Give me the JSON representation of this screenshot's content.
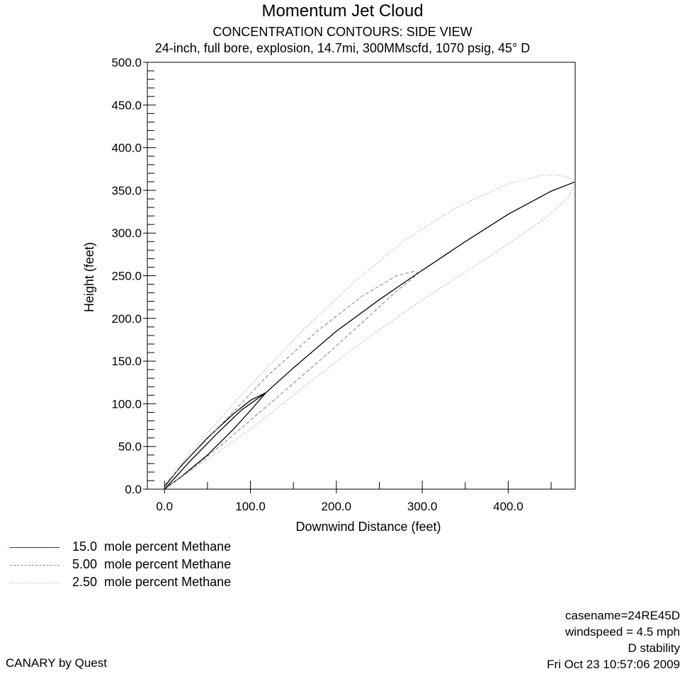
{
  "chart_data": {
    "type": "line",
    "title": "Momentum Jet Cloud",
    "subtitle": "CONCENTRATION CONTOURS: SIDE VIEW",
    "subtitle2": "24-inch, full bore, explosion, 14.7mi, 300MMscfd, 1070 psig, 45° D",
    "xlabel": "Downwind Distance (feet)",
    "ylabel": "Height (feet)",
    "xlim": [
      -20,
      478
    ],
    "ylim": [
      0,
      500
    ],
    "x_ticks": [
      0,
      100,
      200,
      300,
      400
    ],
    "x_tick_labels": [
      "0.0",
      "100.0",
      "200.0",
      "300.0",
      "400.0"
    ],
    "y_ticks": [
      0,
      50,
      100,
      150,
      200,
      250,
      300,
      350,
      400,
      450,
      500
    ],
    "y_tick_labels": [
      "0.0",
      "50.0",
      "100.0",
      "150.0",
      "200.0",
      "250.0",
      "300.0",
      "350.0",
      "400.0",
      "450.0",
      "500.0"
    ],
    "centerline": {
      "x": [
        0,
        30,
        60,
        90,
        118,
        150,
        200,
        250,
        295,
        350,
        400,
        450,
        478
      ],
      "y": [
        0,
        33,
        64,
        93,
        113,
        142,
        185,
        222,
        253,
        290,
        322,
        349,
        360
      ]
    },
    "series": [
      {
        "name": "15.0  mole percent Methane",
        "color": "#c00000",
        "line_style": "solid",
        "upper": {
          "x": [
            0,
            20,
            50,
            80,
            100,
            118
          ],
          "y": [
            3,
            28,
            60,
            88,
            104,
            113
          ]
        },
        "lower": {
          "x": [
            0,
            20,
            50,
            80,
            100,
            118
          ],
          "y": [
            0,
            15,
            40,
            70,
            92,
            113
          ]
        }
      },
      {
        "name": "5.00  mole percent Methane",
        "color": "#808080",
        "line_style": "dashed",
        "upper": {
          "x": [
            0,
            30,
            70,
            120,
            180,
            230,
            270,
            290,
            295
          ],
          "y": [
            5,
            38,
            80,
            133,
            187,
            226,
            250,
            255,
            253
          ]
        },
        "lower": {
          "x": [
            0,
            30,
            70,
            120,
            180,
            230,
            270,
            290,
            295
          ],
          "y": [
            0,
            22,
            55,
            98,
            150,
            195,
            232,
            248,
            253
          ]
        }
      },
      {
        "name": "2.50  mole percent Methane",
        "color": "#a0a0a0",
        "line_style": "dotted",
        "upper": {
          "x": [
            0,
            40,
            100,
            160,
            220,
            280,
            340,
            400,
            440,
            460,
            470,
            478
          ],
          "y": [
            7,
            55,
            122,
            185,
            242,
            292,
            330,
            358,
            368,
            368,
            365,
            360
          ]
        },
        "lower": {
          "x": [
            0,
            40,
            100,
            160,
            220,
            280,
            340,
            400,
            440,
            460,
            470,
            478
          ],
          "y": [
            0,
            28,
            70,
            118,
            165,
            208,
            248,
            287,
            315,
            332,
            342,
            360
          ]
        }
      }
    ]
  },
  "legend": {
    "items": [
      "15.0  mole percent Methane",
      "5.00  mole percent Methane",
      "2.50  mole percent Methane"
    ]
  },
  "info": {
    "casename": "casename=24RE45D",
    "windspeed": "windspeed =  4.5 mph",
    "stability": "D stability",
    "timestamp": "Fri Oct 23 10:57:06 2009"
  },
  "credit": "CANARY by Quest"
}
